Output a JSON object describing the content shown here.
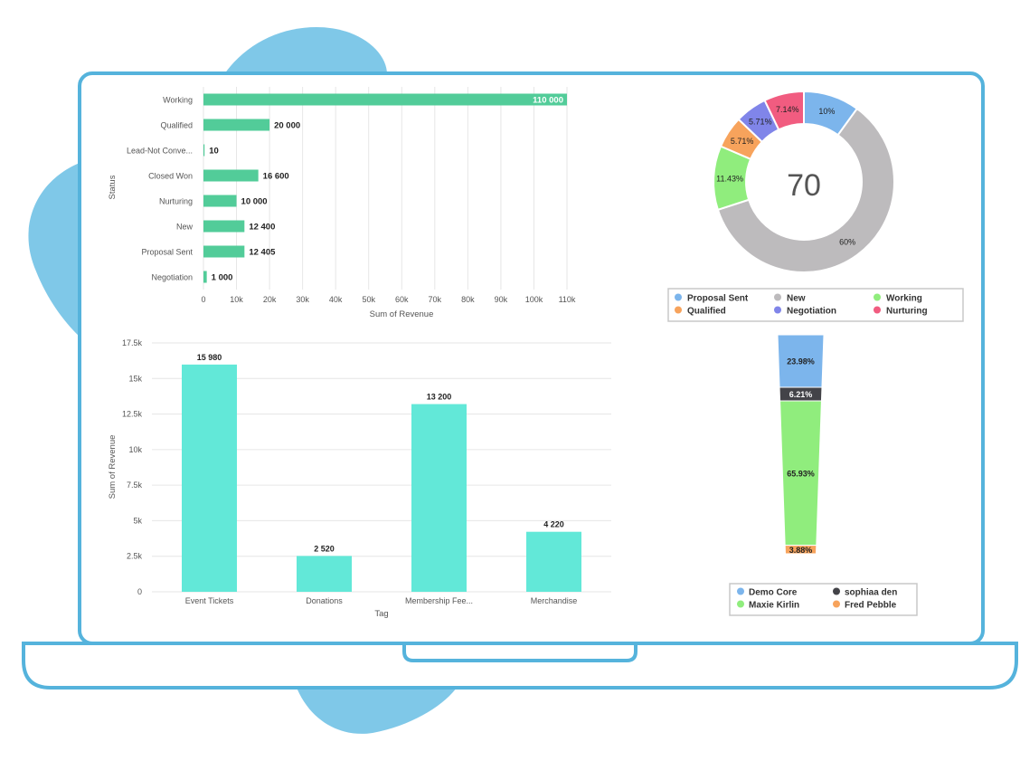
{
  "colors": {
    "frame": "#55b3dc",
    "blob": "#7fc8e8",
    "hbar": "#52cc99",
    "vbar": "#62e8d8",
    "grid": "#e6e6e6"
  },
  "chart_data": [
    {
      "type": "bar",
      "orientation": "horizontal",
      "ylabel": "Status",
      "xlabel": "Sum of Revenue",
      "categories": [
        "Working",
        "Qualified",
        "Lead-Not Conve...",
        "Closed Won",
        "Nurturing",
        "New",
        "Proposal Sent",
        "Negotiation"
      ],
      "values": [
        110000,
        20000,
        10,
        16600,
        10000,
        12400,
        12405,
        1000
      ],
      "value_labels": [
        "110 000",
        "20 000",
        "10",
        "16 600",
        "10 000",
        "12 400",
        "12 405",
        "1 000"
      ],
      "xlim": [
        0,
        110000
      ],
      "xticks": [
        0,
        10000,
        20000,
        30000,
        40000,
        50000,
        60000,
        70000,
        80000,
        90000,
        100000,
        110000
      ],
      "xtick_labels": [
        "0",
        "10k",
        "20k",
        "30k",
        "40k",
        "50k",
        "60k",
        "70k",
        "80k",
        "90k",
        "100k",
        "110k"
      ],
      "grid": true
    },
    {
      "type": "bar",
      "orientation": "vertical",
      "xlabel": "Tag",
      "ylabel": "Sum of Revenue",
      "categories": [
        "Event Tickets",
        "Donations",
        "Membership Fee...",
        "Merchandise"
      ],
      "values": [
        15980,
        2520,
        13200,
        4220
      ],
      "value_labels": [
        "15 980",
        "2 520",
        "13 200",
        "4 220"
      ],
      "ylim": [
        0,
        17500
      ],
      "yticks": [
        0,
        2500,
        5000,
        7500,
        10000,
        12500,
        15000,
        17500
      ],
      "ytick_labels": [
        "0",
        "2.5k",
        "5k",
        "7.5k",
        "10k",
        "12.5k",
        "15k",
        "17.5k"
      ],
      "grid": true
    },
    {
      "type": "pie",
      "style": "donut",
      "center_label": "70",
      "slices": [
        {
          "name": "Proposal Sent",
          "value": 10,
          "label": "10%",
          "color": "#7cb5ec"
        },
        {
          "name": "New",
          "value": 60,
          "label": "60%",
          "color": "#bdbbbd"
        },
        {
          "name": "Working",
          "value": 11.43,
          "label": "11.43%",
          "color": "#90ed7d"
        },
        {
          "name": "Qualified",
          "value": 5.71,
          "label": "5.71%",
          "color": "#f7a35c"
        },
        {
          "name": "Negotiation",
          "value": 5.71,
          "label": "5.71%",
          "color": "#8085e9"
        },
        {
          "name": "Nurturing",
          "value": 7.14,
          "label": "7.14%",
          "color": "#f15c80"
        }
      ],
      "legend_rows": [
        [
          "Proposal Sent",
          "New",
          "Working"
        ],
        [
          "Qualified",
          "Negotiation",
          "Nurturing"
        ]
      ],
      "legend": "bottom"
    },
    {
      "type": "funnel",
      "segments": [
        {
          "name": "Demo Core",
          "value": 23.98,
          "label": "23.98%",
          "color": "#7cb5ec"
        },
        {
          "name": "sophiaa den",
          "value": 6.21,
          "label": "6.21%",
          "color": "#434348"
        },
        {
          "name": "Maxie Kirlin",
          "value": 65.93,
          "label": "65.93%",
          "color": "#90ed7d"
        },
        {
          "name": "Fred Pebble",
          "value": 3.88,
          "label": "3.88%",
          "color": "#f7a35c"
        }
      ],
      "legend_rows": [
        [
          "Demo Core",
          "sophiaa den"
        ],
        [
          "Maxie Kirlin",
          "Fred Pebble"
        ]
      ],
      "legend": "bottom"
    }
  ]
}
